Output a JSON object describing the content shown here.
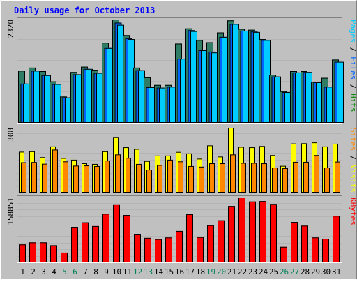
{
  "chart_data": {
    "type": "bar",
    "title": "Daily usage for October 2013",
    "categories": [
      "1",
      "2",
      "3",
      "4",
      "5",
      "6",
      "7",
      "8",
      "9",
      "10",
      "11",
      "12",
      "13",
      "14",
      "15",
      "16",
      "17",
      "18",
      "19",
      "20",
      "21",
      "22",
      "23",
      "24",
      "25",
      "26",
      "27",
      "28",
      "29",
      "30",
      "31"
    ],
    "weekend_days": [
      "5",
      "6",
      "12",
      "13",
      "19",
      "20",
      "26",
      "27"
    ],
    "panels": [
      {
        "name": "hits-files-pages",
        "axis_max_label": "2320",
        "ymax": 2320,
        "legend": [
          {
            "text": "Pages",
            "color": "#00CCFF"
          },
          {
            "text": " / ",
            "color": "#000000"
          },
          {
            "text": "Files",
            "color": "#0066FF"
          },
          {
            "text": " / ",
            "color": "#000000"
          },
          {
            "text": "Hits",
            "color": "#008800"
          }
        ],
        "series": [
          {
            "name": "Hits",
            "color": "#2E7D64",
            "values": [
              1170,
              1240,
              1160,
              930,
              590,
              1140,
              1260,
              1190,
              1800,
              2320,
              1970,
              1240,
              1020,
              850,
              850,
              1780,
              2120,
              1860,
              1810,
              2030,
              2300,
              2110,
              2090,
              1880,
              1080,
              710,
              1160,
              1160,
              920,
              1010,
              1420
            ]
          },
          {
            "name": "Files",
            "color": "#0066FF",
            "values": [
              880,
              1170,
              1070,
              870,
              570,
              1090,
              1210,
              1120,
              1680,
              2250,
              1900,
              1180,
              800,
              790,
              810,
              1440,
              2080,
              1630,
              1600,
              1930,
              2220,
              2070,
              2050,
              1860,
              1040,
              690,
              1130,
              1140,
              910,
              810,
              1370
            ]
          },
          {
            "name": "Pages",
            "color": "#00CCFF",
            "values": [
              880,
              1170,
              1070,
              870,
              570,
              1090,
              1210,
              1120,
              1680,
              2200,
              1880,
              1180,
              800,
              790,
              810,
              1440,
              2060,
              1630,
              1580,
              1930,
              2220,
              2070,
              2040,
              1860,
              1040,
              690,
              1130,
              1140,
              910,
              810,
              1370
            ]
          }
        ]
      },
      {
        "name": "visits-sites",
        "axis_max_label": "308",
        "ymax": 308,
        "legend": [
          {
            "text": "Sites",
            "color": "#FF8800"
          },
          {
            "text": " / ",
            "color": "#000000"
          },
          {
            "text": "Visits",
            "color": "#FFFF00"
          }
        ],
        "series": [
          {
            "name": "Visits",
            "color": "#FFFF00",
            "values": [
              194,
              196,
              168,
              219,
              164,
              156,
              139,
              136,
              196,
              264,
              215,
              207,
              150,
              176,
              176,
              193,
              186,
              161,
              224,
              171,
              308,
              217,
              215,
              221,
              178,
              127,
              233,
              234,
              238,
              219,
              232
            ]
          },
          {
            "name": "Sites",
            "color": "#FF8800",
            "values": [
              144,
              145,
              137,
              204,
              148,
              128,
              129,
              126,
              152,
              181,
              165,
              136,
              109,
              131,
              156,
              148,
              126,
              123,
              139,
              139,
              181,
              141,
              141,
              139,
              119,
              116,
              146,
              146,
              178,
              119,
              147
            ]
          }
        ]
      },
      {
        "name": "kbytes",
        "axis_max_label": "158851",
        "ymax": 158851,
        "legend": [
          {
            "text": "KBytes",
            "color": "#FF0000"
          }
        ],
        "series": [
          {
            "name": "KBytes",
            "color": "#FF0000",
            "values": [
              44000,
              49000,
              49000,
              42000,
              24000,
              87000,
              98000,
              89000,
              119000,
              142000,
              116000,
              70000,
              60000,
              57000,
              61000,
              77000,
              118000,
              62000,
              91000,
              103000,
              138000,
              158851,
              149000,
              150000,
              143000,
              38000,
              99000,
              90000,
              61000,
              58000,
              114000
            ]
          }
        ]
      }
    ]
  }
}
